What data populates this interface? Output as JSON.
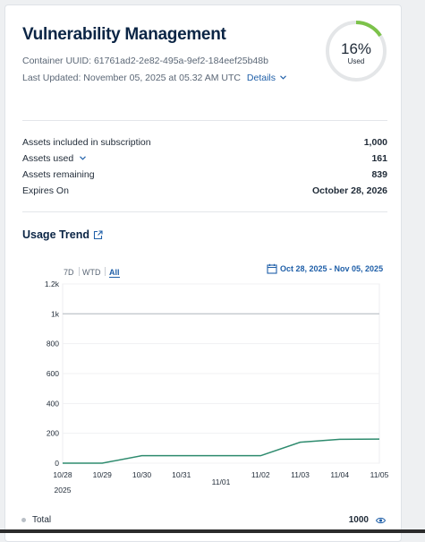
{
  "header": {
    "title": "Vulnerability Management",
    "container_uuid": "Container UUID: 61761ad2-2e82-495a-9ef2-184eef25b48b",
    "last_updated": "Last Updated: November 05, 2025 at 05.32 AM UTC",
    "details_label": "Details"
  },
  "gauge": {
    "percent_label": "16%",
    "sub_label": "Used",
    "fraction": 0.16,
    "color": "#7cc24a",
    "track_color": "#e4e6e8"
  },
  "summary": [
    {
      "label": "Assets included in subscription",
      "value": "1,000"
    },
    {
      "label": "Assets used",
      "value": "161"
    },
    {
      "label": "Assets remaining",
      "value": "839"
    },
    {
      "label": "Expires On",
      "value": "October 28, 2026"
    }
  ],
  "trend": {
    "title": "Usage Trend",
    "ranges": [
      "7D",
      "WTD",
      "All"
    ],
    "active_range": "All",
    "date_range": "Oct 28, 2025 - Nov 05, 2025"
  },
  "chart_data": {
    "type": "line",
    "x": [
      "10/28",
      "10/29",
      "10/30",
      "10/31",
      "11/01",
      "11/02",
      "11/03",
      "11/04",
      "11/05"
    ],
    "x_year_label": "2025",
    "y_ticks": [
      "0",
      "200",
      "400",
      "600",
      "800",
      "1k",
      "1.2k"
    ],
    "ylim": [
      0,
      1200
    ],
    "series": [
      {
        "values": [
          0,
          0,
          50,
          50,
          50,
          50,
          140,
          160,
          161
        ],
        "color": "#2e8b6e"
      },
      {
        "name": "Total",
        "values": [
          1000,
          1000,
          1000,
          1000,
          1000,
          1000,
          1000,
          1000,
          1000
        ],
        "color": "#c5c9ce"
      }
    ],
    "grid": true
  },
  "legend": [
    {
      "label": "Total",
      "value": "1000"
    }
  ],
  "colors": {
    "link": "#1f5fa8",
    "title": "#0b2545"
  }
}
